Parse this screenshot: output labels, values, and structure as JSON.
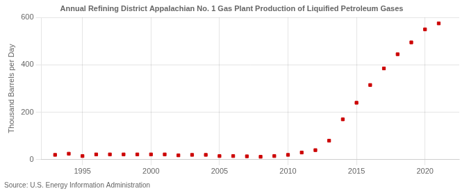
{
  "chart_data": {
    "type": "scatter",
    "title": "Annual Refining District Appalachian No. 1 Gas Plant Production of Liquified Petroleum Gases",
    "ylabel": "Thousand Barrels per Day",
    "annotation": "Source: U.S. Energy Information Administration",
    "x": [
      1993,
      1994,
      1995,
      1996,
      1997,
      1998,
      1999,
      2000,
      2001,
      2002,
      2003,
      2004,
      2005,
      2006,
      2007,
      2008,
      2009,
      2010,
      2011,
      2012,
      2013,
      2014,
      2015,
      2016,
      2017,
      2018,
      2019,
      2020,
      2021
    ],
    "values": [
      20,
      25,
      15,
      22,
      22,
      22,
      22,
      22,
      22,
      18,
      20,
      20,
      15,
      15,
      14,
      12,
      15,
      20,
      30,
      40,
      80,
      170,
      240,
      315,
      385,
      445,
      495,
      550,
      575
    ],
    "color": "#cc0000",
    "marker": "square",
    "xlim": [
      1992.0,
      2022.5
    ],
    "xticks": [
      1995,
      2000,
      2005,
      2010,
      2015,
      2020
    ],
    "ylim": [
      0,
      600
    ],
    "yticks": [
      0,
      200,
      400,
      600
    ],
    "grid": true
  }
}
